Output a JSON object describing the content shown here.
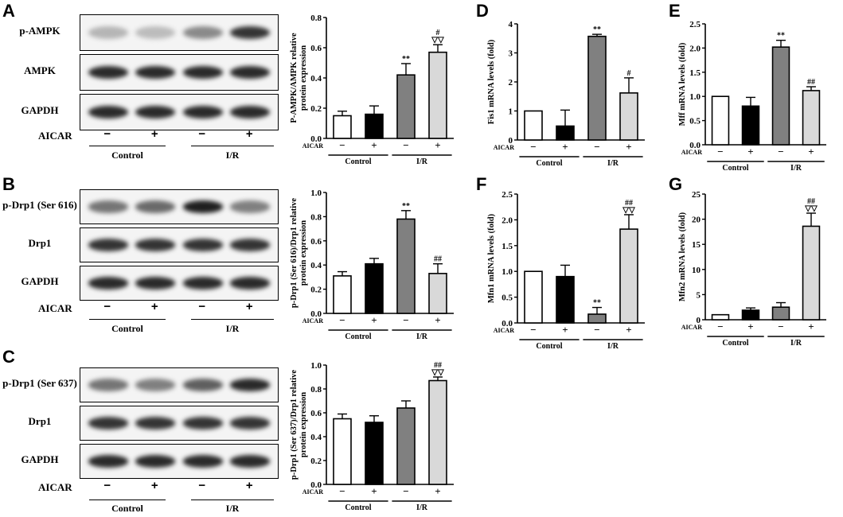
{
  "panel_letters": [
    "A",
    "B",
    "C",
    "D",
    "E",
    "F",
    "G"
  ],
  "blots": [
    {
      "letter": "A",
      "rows": [
        {
          "label": "p-AMPK",
          "intensities": [
            0.25,
            0.22,
            0.45,
            0.85
          ]
        },
        {
          "label": "AMPK",
          "intensities": [
            0.9,
            0.9,
            0.9,
            0.9
          ]
        },
        {
          "label": "GAPDH",
          "intensities": [
            0.9,
            0.9,
            0.9,
            0.9
          ]
        }
      ],
      "aicar_label": "AICAR",
      "aicar_signs": [
        "−",
        "+",
        "−",
        "+"
      ],
      "groups": [
        "Control",
        "I/R"
      ]
    },
    {
      "letter": "B",
      "rows": [
        {
          "label": "p-Drp1 (Ser 616)",
          "intensities": [
            0.55,
            0.6,
            0.95,
            0.5
          ]
        },
        {
          "label": "Drp1",
          "intensities": [
            0.85,
            0.85,
            0.85,
            0.85
          ]
        },
        {
          "label": "GAPDH",
          "intensities": [
            0.9,
            0.9,
            0.9,
            0.9
          ]
        }
      ],
      "aicar_label": "AICAR",
      "aicar_signs": [
        "−",
        "+",
        "−",
        "+"
      ],
      "groups": [
        "Control",
        "I/R"
      ]
    },
    {
      "letter": "C",
      "rows": [
        {
          "label": "p-Drp1 (Ser 637)",
          "intensities": [
            0.55,
            0.5,
            0.65,
            0.9
          ]
        },
        {
          "label": "Drp1",
          "intensities": [
            0.85,
            0.85,
            0.85,
            0.85
          ]
        },
        {
          "label": "GAPDH",
          "intensities": [
            0.9,
            0.9,
            0.9,
            0.9
          ]
        }
      ],
      "aicar_label": "AICAR",
      "aicar_signs": [
        "−",
        "+",
        "−",
        "+"
      ],
      "groups": [
        "Control",
        "I/R"
      ]
    }
  ],
  "chart_data": [
    {
      "id": "A",
      "type": "bar",
      "ylabel": "P-AMPK/AMPK relative protein expression",
      "ylim": [
        0,
        0.8
      ],
      "yticks": [
        "0.0",
        "0.2",
        "0.4",
        "0.6",
        "0.8"
      ],
      "values": [
        0.15,
        0.16,
        0.42,
        0.57
      ],
      "errors": [
        0.03,
        0.055,
        0.075,
        0.05
      ],
      "annotations": [
        "",
        "",
        "**",
        "#\n▽▽"
      ],
      "aicar_label": "AICAR",
      "aicar_signs": [
        "−",
        "+",
        "−",
        "+"
      ],
      "groups": [
        "Control",
        "I/R"
      ]
    },
    {
      "id": "B",
      "type": "bar",
      "ylabel": "p-Drp1 (Ser 616)/Drp1 relative protein expression",
      "ylim": [
        0,
        1.0
      ],
      "yticks": [
        "0.0",
        "0.2",
        "0.4",
        "0.6",
        "0.8",
        "1.0"
      ],
      "values": [
        0.31,
        0.41,
        0.78,
        0.33
      ],
      "errors": [
        0.035,
        0.045,
        0.07,
        0.08
      ],
      "annotations": [
        "",
        "",
        "**",
        "##"
      ],
      "aicar_label": "AICAR",
      "aicar_signs": [
        "−",
        "+",
        "−",
        "+"
      ],
      "groups": [
        "Control",
        "I/R"
      ]
    },
    {
      "id": "C",
      "type": "bar",
      "ylabel": "p-Drp1 (Ser 637)/Drp1 relative protein expression",
      "ylim": [
        0,
        1.0
      ],
      "yticks": [
        "0.0",
        "0.2",
        "0.4",
        "0.6",
        "0.8",
        "1.0"
      ],
      "values": [
        0.55,
        0.52,
        0.64,
        0.87
      ],
      "errors": [
        0.04,
        0.055,
        0.06,
        0.03
      ],
      "annotations": [
        "",
        "",
        "",
        "##\n▽▽"
      ],
      "aicar_label": "AICAR",
      "aicar_signs": [
        "−",
        "+",
        "−",
        "+"
      ],
      "groups": [
        "Control",
        "I/R"
      ]
    },
    {
      "id": "D",
      "type": "bar",
      "ylabel": "Fis1 mRNA levels (fold)",
      "ylim": [
        0,
        4
      ],
      "yticks": [
        "0",
        "1",
        "2",
        "3",
        "4"
      ],
      "values": [
        1.0,
        0.48,
        3.57,
        1.62
      ],
      "errors": [
        0,
        0.55,
        0.07,
        0.52
      ],
      "annotations": [
        "",
        "",
        "**",
        "#"
      ],
      "aicar_label": "AICAR",
      "aicar_signs": [
        "−",
        "+",
        "−",
        "+"
      ],
      "groups": [
        "Control",
        "I/R"
      ]
    },
    {
      "id": "E",
      "type": "bar",
      "ylabel": "Mff mRNA levels (fold)",
      "ylim": [
        0,
        2.5
      ],
      "yticks": [
        "0.0",
        "0.5",
        "1.0",
        "1.5",
        "2.0",
        "2.5"
      ],
      "values": [
        1.0,
        0.8,
        2.02,
        1.12
      ],
      "errors": [
        0,
        0.18,
        0.14,
        0.08
      ],
      "annotations": [
        "",
        "",
        "**",
        "##"
      ],
      "aicar_label": "AICAR",
      "aicar_signs": [
        "−",
        "+",
        "−",
        "+"
      ],
      "groups": [
        "Control",
        "I/R"
      ]
    },
    {
      "id": "F",
      "type": "bar",
      "ylabel": "Mfn1 mRNA levels (fold)",
      "ylim": [
        0,
        2.5
      ],
      "yticks": [
        "0.0",
        "0.5",
        "1.0",
        "1.5",
        "2.0",
        "2.5"
      ],
      "values": [
        1.0,
        0.9,
        0.17,
        1.82
      ],
      "errors": [
        0,
        0.22,
        0.13,
        0.28
      ],
      "annotations": [
        "",
        "",
        "**",
        "##\n▽▽"
      ],
      "aicar_label": "AICAR",
      "aicar_signs": [
        "−",
        "+",
        "−",
        "+"
      ],
      "groups": [
        "Control",
        "I/R"
      ]
    },
    {
      "id": "G",
      "type": "bar",
      "ylabel": "Mfn2 mRNA levels (fold)",
      "ylim": [
        0,
        25
      ],
      "yticks": [
        "0",
        "5",
        "10",
        "15",
        "20",
        "25"
      ],
      "values": [
        1.0,
        1.9,
        2.5,
        18.6
      ],
      "errors": [
        0,
        0.45,
        0.9,
        2.6
      ],
      "annotations": [
        "",
        "",
        "",
        "##\n▽▽"
      ],
      "aicar_label": "AICAR",
      "aicar_signs": [
        "−",
        "+",
        "−",
        "+"
      ],
      "groups": [
        "Control",
        "I/R"
      ]
    }
  ],
  "colors": {
    "bar_fills": [
      "#ffffff",
      "#000000",
      "#808080",
      "#d9d9d9"
    ],
    "stroke": "#000000"
  }
}
